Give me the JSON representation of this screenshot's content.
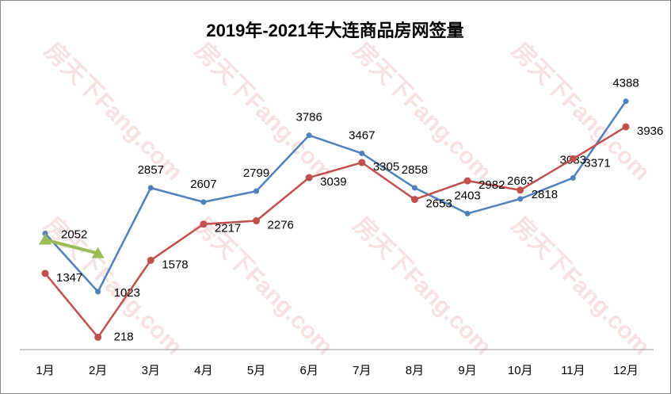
{
  "chart_data": {
    "type": "line",
    "title": "2019年-2021年大连商品房网签量",
    "watermark": "房天下Fang.com",
    "categories": [
      "1月",
      "2月",
      "3月",
      "4月",
      "5月",
      "6月",
      "7月",
      "8月",
      "9月",
      "10月",
      "11月",
      "12月"
    ],
    "series": [
      {
        "color": "#4f81bd",
        "marker": "circle",
        "labels": true,
        "values": [
          2052,
          1023,
          2857,
          2607,
          2799,
          3786,
          3467,
          2858,
          2403,
          2663,
          3033,
          4388
        ]
      },
      {
        "color": "#c0504d",
        "marker": "circle",
        "labels": true,
        "values": [
          1347,
          218,
          1578,
          2217,
          2276,
          3039,
          3305,
          2653,
          2982,
          2818,
          3371,
          3936
        ]
      },
      {
        "color": "#9bbb59",
        "marker": "triangle",
        "labels": false,
        "values": [
          1940,
          1700,
          null,
          null,
          null,
          null,
          null,
          null,
          null,
          null,
          null,
          null
        ]
      }
    ],
    "ylim": [
      0,
      5000
    ],
    "grid": false
  }
}
